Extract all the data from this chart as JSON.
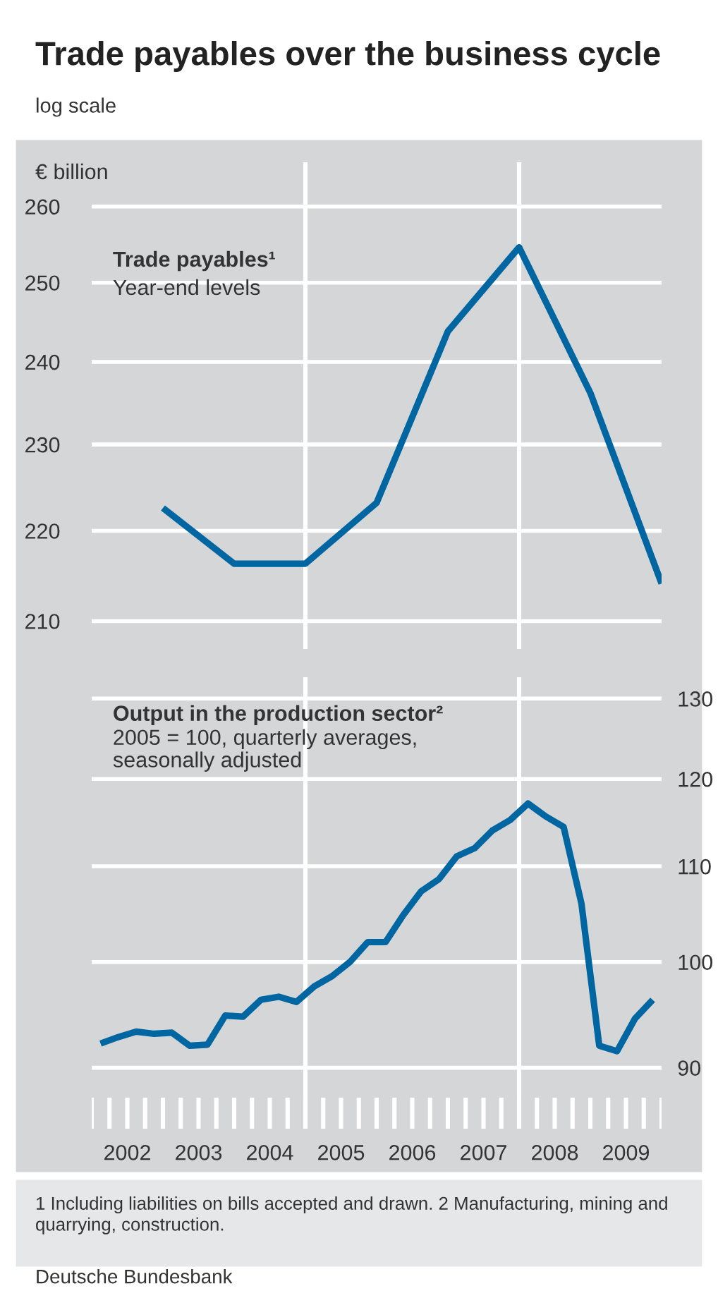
{
  "chart_data": [
    {
      "type": "line",
      "title": "Trade payables over the business cycle",
      "subtitle": "log scale",
      "ylabel": "€ billion",
      "log": "y",
      "tick_labels": "y",
      "grid": "y",
      "x": [
        2003,
        2004,
        2005,
        2006,
        2007,
        2008,
        2009,
        2010
      ],
      "series": [
        {
          "name": "Trade payables¹",
          "color": "#0066a1",
          "values": [
            222.6,
            216.3,
            216.3,
            223.2,
            243.8,
            254.6,
            236.2,
            214.1
          ]
        }
      ],
      "annotations": [
        "Year-end levels"
      ],
      "xlim": [
        2002,
        2010
      ],
      "ylim": [
        207,
        266
      ],
      "yticks": [
        210,
        220,
        230,
        240,
        250,
        260
      ],
      "ref_lines": [
        {
          "axis": "x",
          "value": 2005,
          "color": "#ffffff"
        },
        {
          "axis": "x",
          "value": 2008,
          "color": "#ffffff"
        }
      ],
      "legend": false
    },
    {
      "type": "line",
      "log": "y2",
      "grid": "y",
      "tick_labels": "xy",
      "x": [
        2002.125,
        2002.375,
        2002.625,
        2002.875,
        2003.125,
        2003.375,
        2003.625,
        2003.875,
        2004.125,
        2004.375,
        2004.625,
        2004.875,
        2005.125,
        2005.375,
        2005.625,
        2005.875,
        2006.125,
        2006.375,
        2006.625,
        2006.875,
        2007.125,
        2007.375,
        2007.625,
        2007.875,
        2008.125,
        2008.375,
        2008.625,
        2008.875,
        2009.125,
        2009.375,
        2009.625,
        2009.875
      ],
      "series": [
        {
          "name": "Output in the production sector²",
          "color": "#0066a1",
          "axis": "y2",
          "values": [
            92.2,
            92.8,
            93.3,
            93.1,
            93.2,
            92.0,
            92.1,
            94.8,
            94.7,
            96.3,
            96.6,
            96.1,
            97.6,
            98.6,
            100.0,
            102.0,
            102.0,
            104.8,
            107.3,
            108.6,
            111.1,
            112.0,
            114.0,
            115.2,
            117.1,
            115.6,
            114.4,
            106.0,
            92.0,
            91.5,
            94.5,
            96.3
          ]
        }
      ],
      "annotations": [
        "2005 = 100, quarterly averages,\nseasonally adjusted",
        "1 Including liabilities on bills accepted and drawn. 2 Manufacturing, mining and quarrying, construction.",
        "Deutsche Bundesbank"
      ],
      "xlim": [
        2002,
        2010
      ],
      "xticks": [
        {
          "value": 2002.5,
          "label": "2002"
        },
        {
          "value": 2003.5,
          "label": "2003"
        },
        {
          "value": 2004.5,
          "label": "2004"
        },
        {
          "value": 2005.5,
          "label": "2005"
        },
        {
          "value": 2006.5,
          "label": "2006"
        },
        {
          "value": 2007.5,
          "label": "2007"
        },
        {
          "value": 2008.5,
          "label": "2008"
        },
        {
          "value": 2009.5,
          "label": "2009"
        }
      ],
      "y2lim": [
        84.7,
        132.8
      ],
      "y2ticks": [
        90,
        100,
        110,
        120,
        130
      ],
      "ref_lines": [
        {
          "axis": "x",
          "value": 2005,
          "color": "#ffffff"
        },
        {
          "axis": "x",
          "value": 2008,
          "color": "#ffffff"
        }
      ],
      "legend": false
    }
  ]
}
